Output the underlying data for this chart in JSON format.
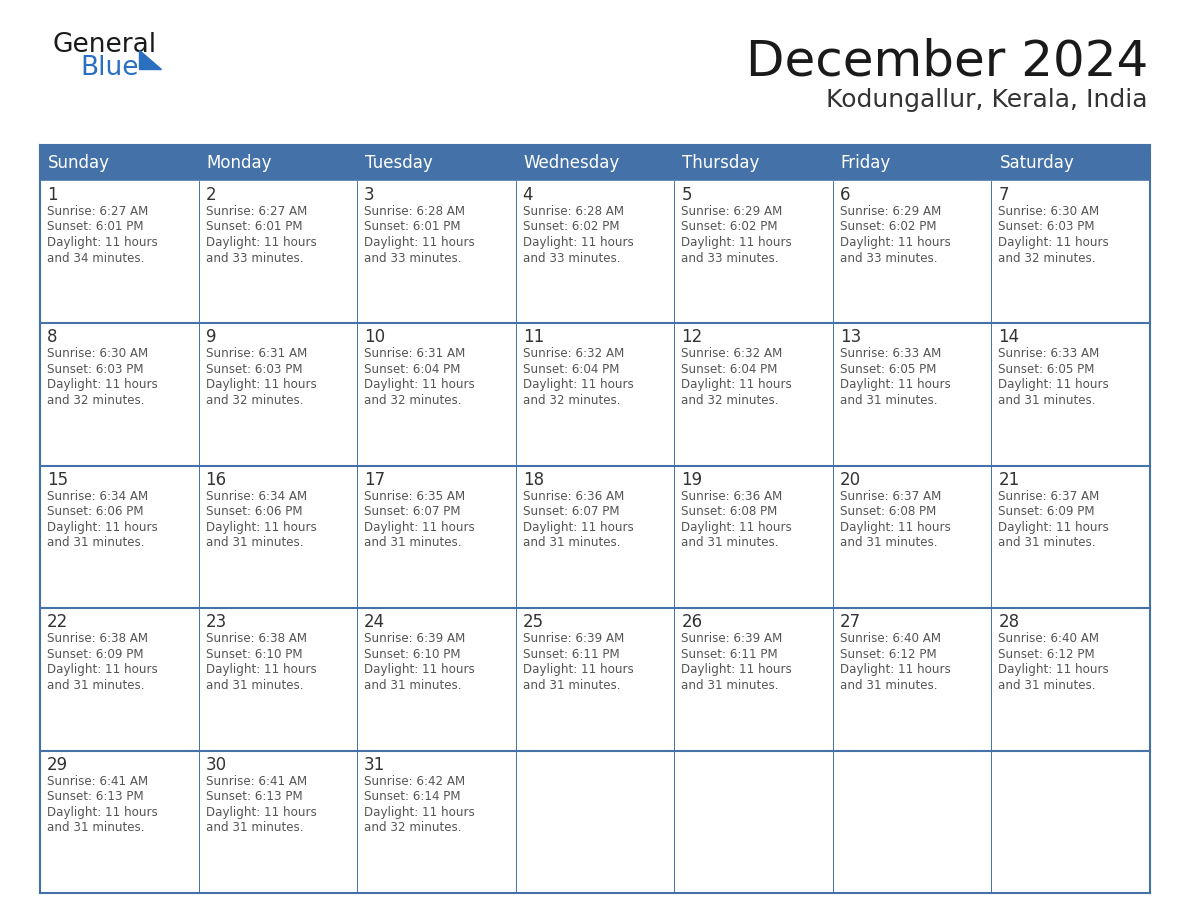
{
  "title": "December 2024",
  "subtitle": "Kodungallur, Kerala, India",
  "days_of_week": [
    "Sunday",
    "Monday",
    "Tuesday",
    "Wednesday",
    "Thursday",
    "Friday",
    "Saturday"
  ],
  "header_bg": "#4472a8",
  "header_text": "#ffffff",
  "cell_bg": "#ffffff",
  "cell_border": "#4472a8",
  "row_separator": "#4472a8",
  "day_num_color": "#333333",
  "cell_text_color": "#555555",
  "title_color": "#1a1a1a",
  "subtitle_color": "#333333",
  "logo_general_color": "#1a1a1a",
  "logo_blue_color": "#2a6fc0",
  "fig_width": 11.88,
  "fig_height": 9.18,
  "dpi": 100,
  "calendar_data": [
    [
      {
        "day": 1,
        "sunrise": "6:27 AM",
        "sunset": "6:01 PM",
        "dl_line3": "Daylight: 11 hours",
        "dl_line4": "and 34 minutes."
      },
      {
        "day": 2,
        "sunrise": "6:27 AM",
        "sunset": "6:01 PM",
        "dl_line3": "Daylight: 11 hours",
        "dl_line4": "and 33 minutes."
      },
      {
        "day": 3,
        "sunrise": "6:28 AM",
        "sunset": "6:01 PM",
        "dl_line3": "Daylight: 11 hours",
        "dl_line4": "and 33 minutes."
      },
      {
        "day": 4,
        "sunrise": "6:28 AM",
        "sunset": "6:02 PM",
        "dl_line3": "Daylight: 11 hours",
        "dl_line4": "and 33 minutes."
      },
      {
        "day": 5,
        "sunrise": "6:29 AM",
        "sunset": "6:02 PM",
        "dl_line3": "Daylight: 11 hours",
        "dl_line4": "and 33 minutes."
      },
      {
        "day": 6,
        "sunrise": "6:29 AM",
        "sunset": "6:02 PM",
        "dl_line3": "Daylight: 11 hours",
        "dl_line4": "and 33 minutes."
      },
      {
        "day": 7,
        "sunrise": "6:30 AM",
        "sunset": "6:03 PM",
        "dl_line3": "Daylight: 11 hours",
        "dl_line4": "and 32 minutes."
      }
    ],
    [
      {
        "day": 8,
        "sunrise": "6:30 AM",
        "sunset": "6:03 PM",
        "dl_line3": "Daylight: 11 hours",
        "dl_line4": "and 32 minutes."
      },
      {
        "day": 9,
        "sunrise": "6:31 AM",
        "sunset": "6:03 PM",
        "dl_line3": "Daylight: 11 hours",
        "dl_line4": "and 32 minutes."
      },
      {
        "day": 10,
        "sunrise": "6:31 AM",
        "sunset": "6:04 PM",
        "dl_line3": "Daylight: 11 hours",
        "dl_line4": "and 32 minutes."
      },
      {
        "day": 11,
        "sunrise": "6:32 AM",
        "sunset": "6:04 PM",
        "dl_line3": "Daylight: 11 hours",
        "dl_line4": "and 32 minutes."
      },
      {
        "day": 12,
        "sunrise": "6:32 AM",
        "sunset": "6:04 PM",
        "dl_line3": "Daylight: 11 hours",
        "dl_line4": "and 32 minutes."
      },
      {
        "day": 13,
        "sunrise": "6:33 AM",
        "sunset": "6:05 PM",
        "dl_line3": "Daylight: 11 hours",
        "dl_line4": "and 31 minutes."
      },
      {
        "day": 14,
        "sunrise": "6:33 AM",
        "sunset": "6:05 PM",
        "dl_line3": "Daylight: 11 hours",
        "dl_line4": "and 31 minutes."
      }
    ],
    [
      {
        "day": 15,
        "sunrise": "6:34 AM",
        "sunset": "6:06 PM",
        "dl_line3": "Daylight: 11 hours",
        "dl_line4": "and 31 minutes."
      },
      {
        "day": 16,
        "sunrise": "6:34 AM",
        "sunset": "6:06 PM",
        "dl_line3": "Daylight: 11 hours",
        "dl_line4": "and 31 minutes."
      },
      {
        "day": 17,
        "sunrise": "6:35 AM",
        "sunset": "6:07 PM",
        "dl_line3": "Daylight: 11 hours",
        "dl_line4": "and 31 minutes."
      },
      {
        "day": 18,
        "sunrise": "6:36 AM",
        "sunset": "6:07 PM",
        "dl_line3": "Daylight: 11 hours",
        "dl_line4": "and 31 minutes."
      },
      {
        "day": 19,
        "sunrise": "6:36 AM",
        "sunset": "6:08 PM",
        "dl_line3": "Daylight: 11 hours",
        "dl_line4": "and 31 minutes."
      },
      {
        "day": 20,
        "sunrise": "6:37 AM",
        "sunset": "6:08 PM",
        "dl_line3": "Daylight: 11 hours",
        "dl_line4": "and 31 minutes."
      },
      {
        "day": 21,
        "sunrise": "6:37 AM",
        "sunset": "6:09 PM",
        "dl_line3": "Daylight: 11 hours",
        "dl_line4": "and 31 minutes."
      }
    ],
    [
      {
        "day": 22,
        "sunrise": "6:38 AM",
        "sunset": "6:09 PM",
        "dl_line3": "Daylight: 11 hours",
        "dl_line4": "and 31 minutes."
      },
      {
        "day": 23,
        "sunrise": "6:38 AM",
        "sunset": "6:10 PM",
        "dl_line3": "Daylight: 11 hours",
        "dl_line4": "and 31 minutes."
      },
      {
        "day": 24,
        "sunrise": "6:39 AM",
        "sunset": "6:10 PM",
        "dl_line3": "Daylight: 11 hours",
        "dl_line4": "and 31 minutes."
      },
      {
        "day": 25,
        "sunrise": "6:39 AM",
        "sunset": "6:11 PM",
        "dl_line3": "Daylight: 11 hours",
        "dl_line4": "and 31 minutes."
      },
      {
        "day": 26,
        "sunrise": "6:39 AM",
        "sunset": "6:11 PM",
        "dl_line3": "Daylight: 11 hours",
        "dl_line4": "and 31 minutes."
      },
      {
        "day": 27,
        "sunrise": "6:40 AM",
        "sunset": "6:12 PM",
        "dl_line3": "Daylight: 11 hours",
        "dl_line4": "and 31 minutes."
      },
      {
        "day": 28,
        "sunrise": "6:40 AM",
        "sunset": "6:12 PM",
        "dl_line3": "Daylight: 11 hours",
        "dl_line4": "and 31 minutes."
      }
    ],
    [
      {
        "day": 29,
        "sunrise": "6:41 AM",
        "sunset": "6:13 PM",
        "dl_line3": "Daylight: 11 hours",
        "dl_line4": "and 31 minutes."
      },
      {
        "day": 30,
        "sunrise": "6:41 AM",
        "sunset": "6:13 PM",
        "dl_line3": "Daylight: 11 hours",
        "dl_line4": "and 31 minutes."
      },
      {
        "day": 31,
        "sunrise": "6:42 AM",
        "sunset": "6:14 PM",
        "dl_line3": "Daylight: 11 hours",
        "dl_line4": "and 32 minutes."
      },
      null,
      null,
      null,
      null
    ]
  ]
}
